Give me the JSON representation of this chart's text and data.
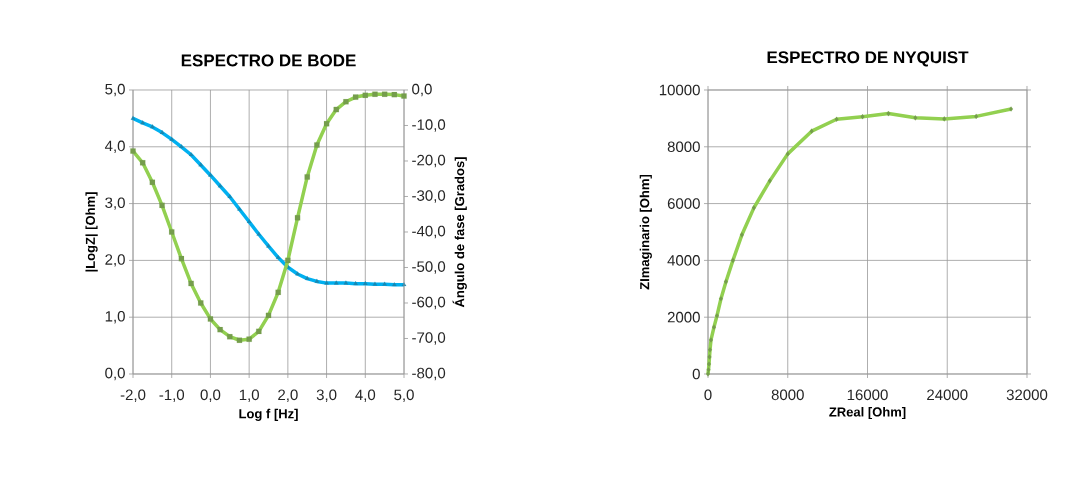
{
  "chart_data": [
    {
      "type": "line",
      "title": "ESPECTRO DE BODE",
      "xlabel": "Log f [Hz]",
      "ylabel": "|LogZ| [Ohm]",
      "y2label": "Ángulo de fase [Grados]",
      "xlim": [
        -2,
        5
      ],
      "ylim": [
        0,
        5
      ],
      "y2lim": [
        -80,
        0
      ],
      "grid": true,
      "xticks": [
        {
          "value": -2,
          "label": "-2,0"
        },
        {
          "value": -1,
          "label": "-1,0"
        },
        {
          "value": 0,
          "label": "0,0"
        },
        {
          "value": 1,
          "label": "1,0"
        },
        {
          "value": 2,
          "label": "2,0"
        },
        {
          "value": 3,
          "label": "3,0"
        },
        {
          "value": 4,
          "label": "4,0"
        },
        {
          "value": 5,
          "label": "5,0"
        }
      ],
      "yticks": [
        {
          "value": 0,
          "label": "0,0"
        },
        {
          "value": 1,
          "label": "1,0"
        },
        {
          "value": 2,
          "label": "2,0"
        },
        {
          "value": 3,
          "label": "3,0"
        },
        {
          "value": 4,
          "label": "4,0"
        },
        {
          "value": 5,
          "label": "5,0"
        }
      ],
      "y2ticks": [
        {
          "value": -80,
          "label": "-80,0"
        },
        {
          "value": -70,
          "label": "-70,0"
        },
        {
          "value": -60,
          "label": "-60,0"
        },
        {
          "value": -50,
          "label": "-50,0"
        },
        {
          "value": -40,
          "label": "-40,0"
        },
        {
          "value": -30,
          "label": "-30,0"
        },
        {
          "value": -20,
          "label": "-20,0"
        },
        {
          "value": -10,
          "label": "-10,0"
        },
        {
          "value": 0,
          "label": "0,0"
        }
      ],
      "x": [
        -2,
        -1.75,
        -1.5,
        -1.25,
        -1,
        -0.75,
        -0.5,
        -0.25,
        0,
        0.25,
        0.5,
        0.75,
        1,
        1.25,
        1.5,
        1.75,
        2,
        2.25,
        2.5,
        2.75,
        3,
        3.25,
        3.5,
        3.75,
        4,
        4.25,
        4.5,
        4.75,
        5
      ],
      "series": [
        {
          "color": "#00b0f0",
          "marker": "triangle",
          "values": [
            4.5,
            4.42,
            4.35,
            4.25,
            4.13,
            4.0,
            3.86,
            3.68,
            3.5,
            3.31,
            3.12,
            2.9,
            2.68,
            2.46,
            2.25,
            2.05,
            1.88,
            1.76,
            1.68,
            1.63,
            1.6,
            1.6,
            1.6,
            1.59,
            1.59,
            1.58,
            1.58,
            1.57,
            1.57
          ]
        },
        {
          "color": "#92d050",
          "marker": "square",
          "axis": "y2",
          "values": [
            -17.2,
            -20.5,
            -26.0,
            -32.5,
            -40.0,
            -47.5,
            -54.5,
            -60.0,
            -64.5,
            -67.5,
            -69.5,
            -70.5,
            -70.2,
            -68.0,
            -63.5,
            -57.0,
            -48.0,
            -36.0,
            -24.5,
            -15.5,
            -9.5,
            -5.5,
            -3.3,
            -2.0,
            -1.5,
            -1.2,
            -1.2,
            -1.3,
            -1.7
          ]
        }
      ]
    },
    {
      "type": "line",
      "title": "ESPECTRO DE NYQUIST",
      "xlabel": "ZReal  [Ohm]",
      "ylabel": "ZImaginario  [Ohm]",
      "xlim": [
        0,
        32000
      ],
      "ylim": [
        0,
        10000
      ],
      "grid": true,
      "marker": "diamond",
      "xticks": [
        0,
        8000,
        16000,
        24000,
        32000
      ],
      "yticks": [
        0,
        2000,
        4000,
        6000,
        8000,
        10000
      ],
      "x": [
        0,
        50,
        100,
        150,
        200,
        300,
        600,
        900,
        1300,
        1800,
        2500,
        3400,
        4600,
        6200,
        8000,
        10400,
        12900,
        15500,
        18100,
        20800,
        23700,
        26900,
        30400
      ],
      "series": [
        {
          "color": "#92d050",
          "values": [
            0,
            150,
            350,
            600,
            850,
            1200,
            1650,
            2050,
            2650,
            3250,
            4000,
            4900,
            5850,
            6800,
            7750,
            8550,
            8970,
            9060,
            9170,
            9020,
            8980,
            9070,
            9330
          ]
        }
      ]
    }
  ]
}
